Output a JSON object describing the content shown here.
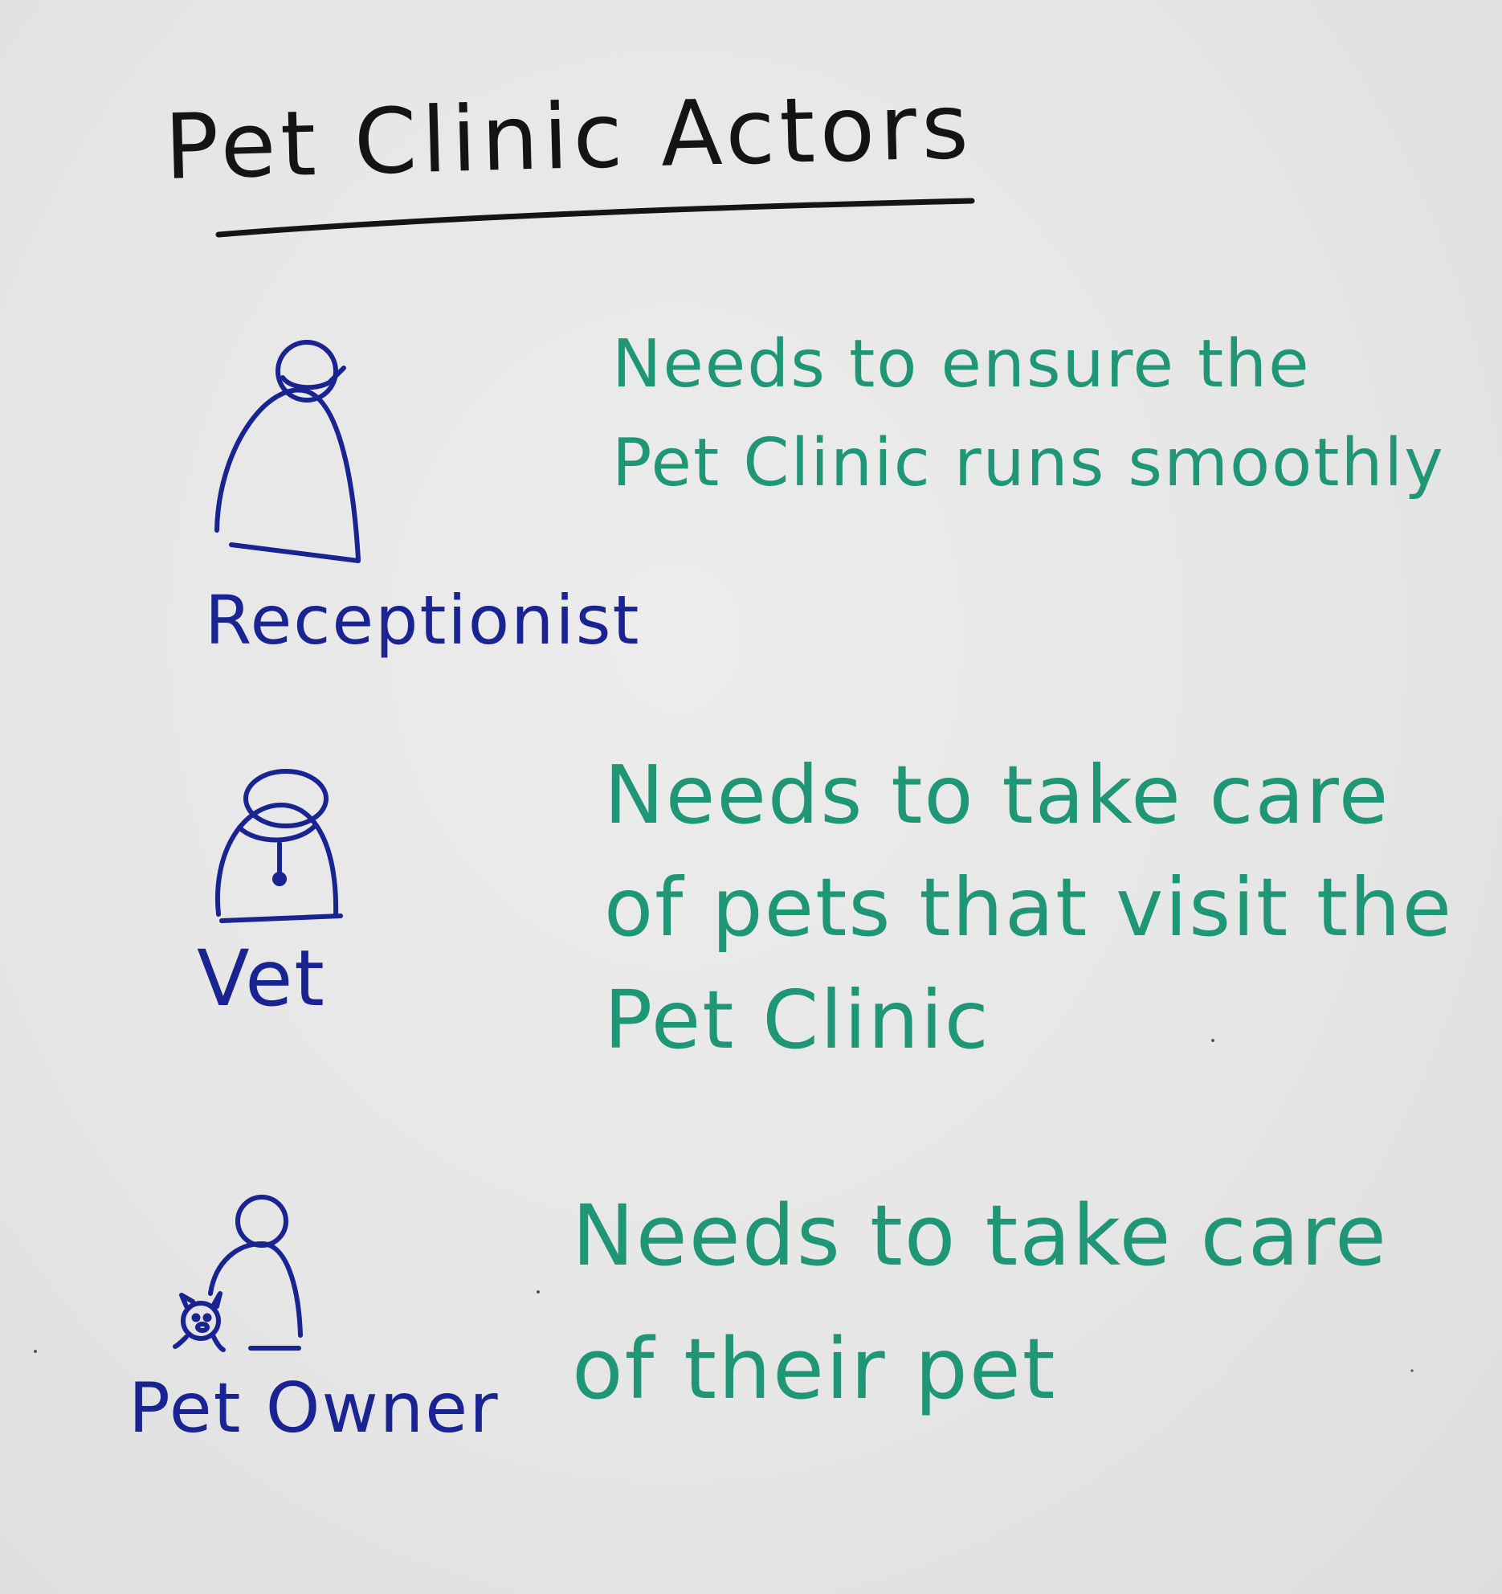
{
  "title": "Pet Clinic Actors",
  "colors": {
    "title_ink": "#141414",
    "actor_ink": "#1a2392",
    "need_ink": "#1f9676",
    "board": "#e6e6e6"
  },
  "actors": [
    {
      "label": "Receptionist",
      "icon": "receptionist-figure-icon",
      "need_lines": [
        "Needs to ensure the",
        "Pet Clinic runs smoothly"
      ]
    },
    {
      "label": "Vet",
      "icon": "vet-figure-icon",
      "need_lines": [
        "Needs to take care",
        "of pets that visit the",
        "Pet Clinic"
      ]
    },
    {
      "label": "Pet Owner",
      "icon": "pet-owner-figure-icon",
      "need_lines": [
        "Needs to take care",
        "of their pet"
      ]
    }
  ]
}
